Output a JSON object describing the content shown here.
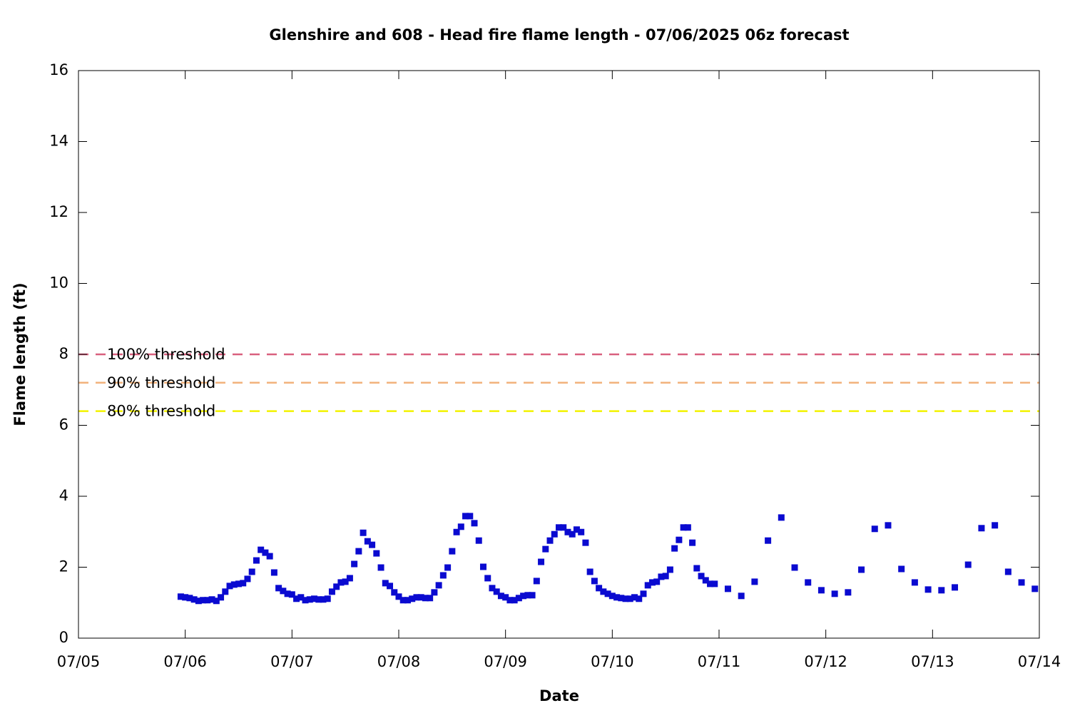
{
  "chart_data": {
    "type": "scatter",
    "title": "Glenshire and 608 - Head fire flame length - 07/06/2025 06z forecast",
    "xlabel": "Date",
    "ylabel": "Flame length (ft)",
    "xlim": [
      0,
      216
    ],
    "xticks": [
      {
        "value": 0,
        "label": "07/05"
      },
      {
        "value": 24,
        "label": "07/06"
      },
      {
        "value": 48,
        "label": "07/07"
      },
      {
        "value": 72,
        "label": "07/08"
      },
      {
        "value": 96,
        "label": "07/09"
      },
      {
        "value": 120,
        "label": "07/10"
      },
      {
        "value": 144,
        "label": "07/11"
      },
      {
        "value": 168,
        "label": "07/12"
      },
      {
        "value": 192,
        "label": "07/13"
      },
      {
        "value": 216,
        "label": "07/14"
      }
    ],
    "ylim": [
      0,
      16
    ],
    "yticks": [
      0,
      2,
      4,
      6,
      8,
      10,
      12,
      14,
      16
    ],
    "x": [
      23,
      24,
      25,
      26,
      27,
      28,
      29,
      30,
      31,
      32,
      33,
      34,
      35,
      36,
      37,
      38,
      39,
      40,
      41,
      42,
      43,
      44,
      45,
      46,
      47,
      48,
      49,
      50,
      51,
      52,
      53,
      54,
      55,
      56,
      57,
      58,
      59,
      60,
      61,
      62,
      63,
      64,
      65,
      66,
      67,
      68,
      69,
      70,
      71,
      72,
      73,
      74,
      75,
      76,
      77,
      78,
      79,
      80,
      81,
      82,
      83,
      84,
      85,
      86,
      87,
      88,
      89,
      90,
      91,
      92,
      93,
      94,
      95,
      96,
      97,
      98,
      99,
      100,
      101,
      102,
      103,
      104,
      105,
      106,
      107,
      108,
      109,
      110,
      111,
      112,
      113,
      114,
      115,
      116,
      117,
      118,
      119,
      120,
      121,
      122,
      123,
      124,
      125,
      126,
      127,
      128,
      129,
      130,
      131,
      132,
      133,
      134,
      135,
      136,
      137,
      138,
      139,
      140,
      141,
      142,
      143,
      146,
      149,
      152,
      155,
      158,
      161,
      164,
      167,
      170,
      173,
      176,
      179,
      182,
      185,
      188,
      191,
      194,
      197,
      200,
      203,
      206,
      209,
      212,
      215
    ],
    "values": [
      1.17,
      1.15,
      1.13,
      1.09,
      1.05,
      1.07,
      1.07,
      1.09,
      1.05,
      1.15,
      1.31,
      1.47,
      1.51,
      1.53,
      1.55,
      1.67,
      1.87,
      2.19,
      2.49,
      2.41,
      2.31,
      1.85,
      1.41,
      1.33,
      1.25,
      1.23,
      1.11,
      1.15,
      1.07,
      1.09,
      1.11,
      1.09,
      1.09,
      1.11,
      1.31,
      1.45,
      1.57,
      1.59,
      1.69,
      2.09,
      2.45,
      2.97,
      2.73,
      2.63,
      2.39,
      1.99,
      1.55,
      1.47,
      1.29,
      1.17,
      1.07,
      1.07,
      1.11,
      1.15,
      1.15,
      1.13,
      1.13,
      1.29,
      1.49,
      1.77,
      1.99,
      2.45,
      2.99,
      3.14,
      3.44,
      3.44,
      3.24,
      2.75,
      2.01,
      1.69,
      1.41,
      1.31,
      1.19,
      1.15,
      1.07,
      1.07,
      1.13,
      1.19,
      1.21,
      1.21,
      1.61,
      2.15,
      2.51,
      2.75,
      2.93,
      3.12,
      3.12,
      2.99,
      2.93,
      3.06,
      2.99,
      2.69,
      1.87,
      1.61,
      1.41,
      1.31,
      1.25,
      1.19,
      1.15,
      1.13,
      1.11,
      1.11,
      1.15,
      1.11,
      1.25,
      1.49,
      1.57,
      1.59,
      1.73,
      1.75,
      1.93,
      2.53,
      2.77,
      3.12,
      3.12,
      2.69,
      1.97,
      1.75,
      1.63,
      1.53,
      1.53,
      1.39,
      1.19,
      1.59,
      2.75,
      3.4,
      1.99,
      1.57,
      1.35,
      1.25,
      1.29,
      1.93,
      3.08,
      3.18,
      1.95,
      1.57,
      1.37,
      1.35,
      1.43,
      2.07,
      3.1,
      3.18,
      1.87,
      1.57,
      1.39
    ],
    "color": "#0a0ad0",
    "thresholds": [
      {
        "name": "100% threshold",
        "value": 8,
        "color": "#d9607e"
      },
      {
        "name": "90% threshold",
        "value": 7.2,
        "color": "#f2b27c"
      },
      {
        "name": "80% threshold",
        "value": 6.4,
        "color": "#f2f200"
      }
    ]
  }
}
